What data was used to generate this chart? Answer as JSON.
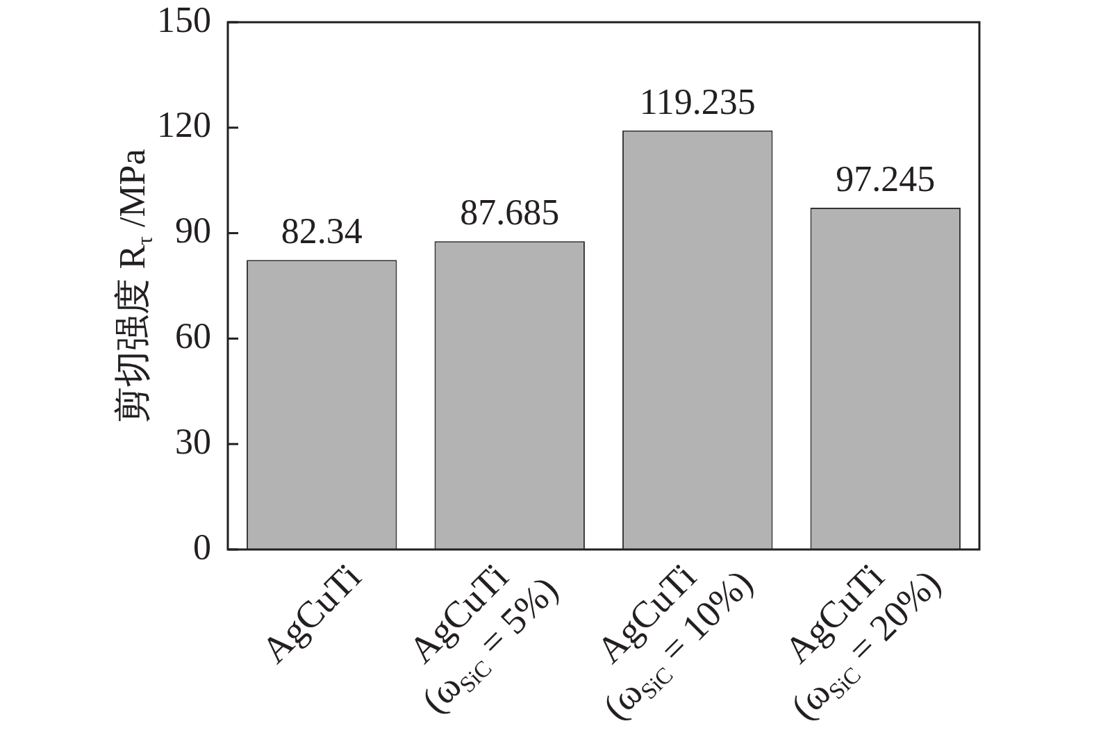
{
  "chart_data": {
    "type": "bar",
    "categories": [
      "AgCuTi",
      "AgCuTi\n(ω$_{SiC}$ = 5%)",
      "AgCuTi\n(ω$_{SiC}$ = 10%)",
      "AgCuTi\n(ω$_{SiC}$ = 20%)"
    ],
    "values": [
      82.34,
      87.685,
      119.235,
      97.245
    ],
    "color": "#b3b3b3",
    "ylabel": "剪切强度 R$_{τ}$ /MPa",
    "ylim": [
      0,
      150
    ],
    "yticks": [
      0,
      30,
      60,
      90,
      120,
      150
    ],
    "data_labels": true,
    "grid": false,
    "legend": false
  }
}
